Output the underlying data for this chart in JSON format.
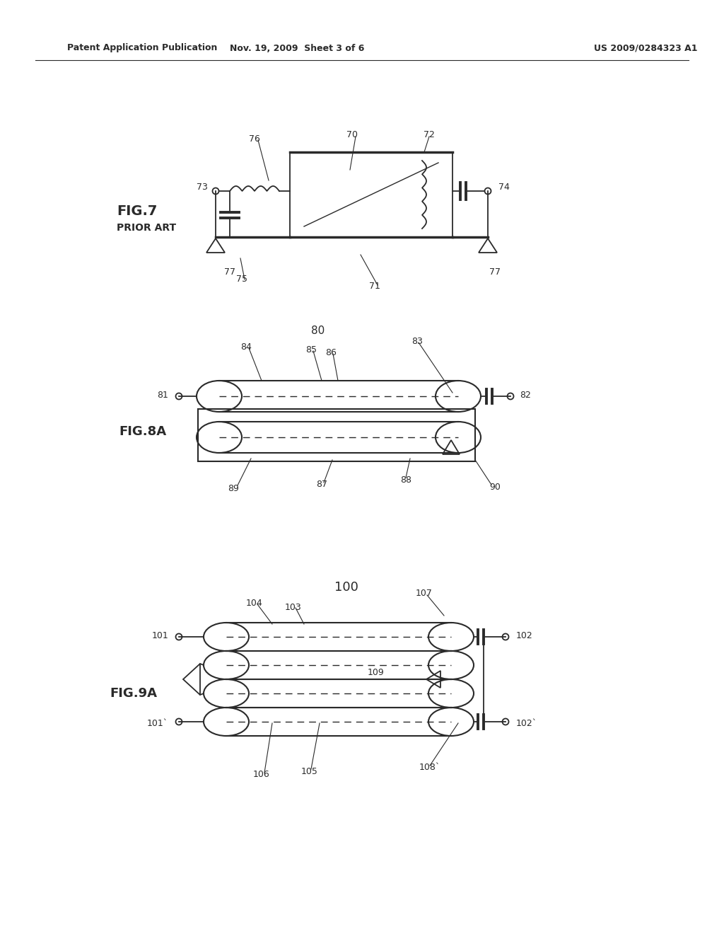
{
  "bg_color": "#ffffff",
  "text_color": "#2a2a2a",
  "line_color": "#2a2a2a",
  "header_left": "Patent Application Publication",
  "header_mid": "Nov. 19, 2009  Sheet 3 of 6",
  "header_right": "US 2009/0284323 A1",
  "fig7_label": "FIG.7",
  "fig7_prior": "PRIOR ART",
  "fig8a_label": "FIG.8A",
  "fig9a_label": "FIG.9A",
  "page_width": 10.24,
  "page_height": 13.2
}
